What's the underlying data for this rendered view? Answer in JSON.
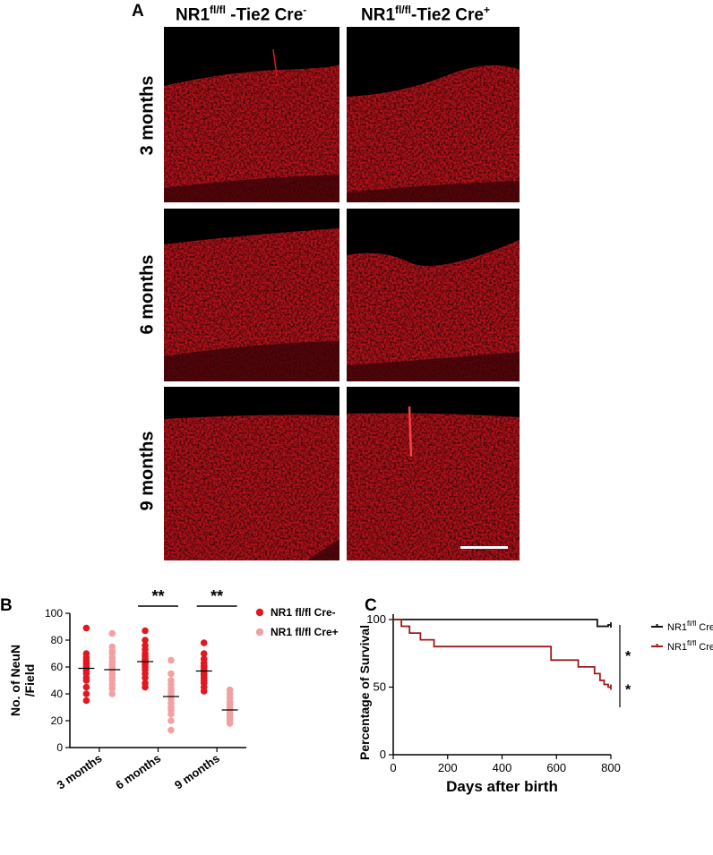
{
  "figure": {
    "panel_a": {
      "letter": "A",
      "column_headers": [
        {
          "main": "NR1",
          "sup": "fl/fl",
          "rest": " -Tie2 Cre",
          "tail_sup": "-"
        },
        {
          "main": "NR1",
          "sup": "fl/fl",
          "rest": "-Tie2 Cre",
          "tail_sup": "+"
        }
      ],
      "row_labels": [
        "3 months",
        "6 months",
        "9 months"
      ],
      "image_fill_color": "#d8141b"
    },
    "panel_b": {
      "letter": "B"
    },
    "panel_c": {
      "letter": "C"
    }
  },
  "chart_data": [
    {
      "type": "scatter",
      "title": "",
      "ylabel": "No. of NeuN /Field",
      "ylabel_lines": [
        "No. of NeuN",
        "/Field"
      ],
      "categories": [
        "3 months",
        "6 months",
        "9 months"
      ],
      "ylim": [
        0,
        100
      ],
      "yticks": [
        0,
        20,
        40,
        60,
        80,
        100
      ],
      "significance": [
        {
          "category": "6 months",
          "label": "**"
        },
        {
          "category": "9 months",
          "label": "**"
        }
      ],
      "series": [
        {
          "name": "NR1 fl/fl Cre-",
          "color": "#e3171f",
          "values": [
            [
              89,
              70,
              67,
              65,
              63,
              61,
              59,
              57,
              55,
              52,
              50,
              45,
              40,
              35
            ],
            [
              87,
              80,
              76,
              73,
              70,
              68,
              66,
              65,
              64,
              63,
              62,
              60,
              58,
              55,
              52,
              48,
              45
            ],
            [
              78,
              70,
              66,
              63,
              61,
              60,
              58,
              57,
              55,
              54,
              52,
              50,
              48,
              45,
              42
            ]
          ],
          "means": [
            59,
            64,
            57
          ]
        },
        {
          "name": "NR1 fl/fl Cre+",
          "color": "#f3a0a3",
          "values": [
            [
              85,
              75,
              72,
              70,
              67,
              64,
              62,
              60,
              58,
              55,
              52,
              50,
              47,
              44,
              40
            ],
            [
              65,
              55,
              50,
              47,
              44,
              42,
              40,
              38,
              36,
              33,
              30,
              28,
              25,
              20,
              13
            ],
            [
              43,
              40,
              37,
              34,
              32,
              30,
              28,
              26,
              24,
              22,
              20,
              18
            ]
          ],
          "means": [
            58,
            38,
            28
          ]
        }
      ]
    },
    {
      "type": "line",
      "title": "",
      "xlabel": "Days after birth",
      "ylabel": "Percentage of Survival",
      "xlim": [
        0,
        800
      ],
      "ylim": [
        0,
        100
      ],
      "xticks": [
        0,
        200,
        400,
        600,
        800
      ],
      "yticks": [
        0,
        50,
        100
      ],
      "significance_labels": [
        "*",
        "*"
      ],
      "series": [
        {
          "name": "NR1",
          "sup": "fl/fl",
          "suffix": " Cre",
          "suffix_sup": "-",
          "color": "#111111",
          "x": [
            0,
            750,
            750,
            790,
            790,
            800
          ],
          "y": [
            100,
            100,
            95,
            95,
            96,
            96
          ]
        },
        {
          "name": "NR1",
          "sup": "fl/fl",
          "suffix": " Cre",
          "suffix_sup": "+",
          "color": "#9c1c1c",
          "x": [
            0,
            30,
            30,
            60,
            60,
            100,
            100,
            150,
            150,
            580,
            580,
            680,
            680,
            740,
            740,
            760,
            760,
            775,
            775,
            790,
            790,
            800
          ],
          "y": [
            100,
            100,
            95,
            95,
            90,
            90,
            85,
            85,
            80,
            80,
            70,
            70,
            65,
            65,
            60,
            60,
            55,
            55,
            52,
            52,
            50,
            50
          ]
        }
      ]
    }
  ]
}
